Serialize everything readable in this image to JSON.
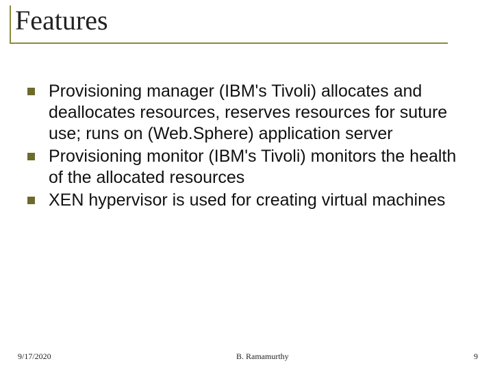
{
  "title": "Features",
  "bullets": [
    "Provisioning manager (IBM's Tivoli) allocates and deallocates resources, reserves resources for suture use; runs on (Web.Sphere) application server",
    "Provisioning monitor (IBM's Tivoli) monitors the health of the allocated resources",
    "XEN hypervisor is used for creating virtual machines"
  ],
  "footer": {
    "date": "9/17/2020",
    "author": "B. Ramamurthy",
    "page": "9"
  },
  "colors": {
    "accent": "#8a8a3a",
    "bullet": "#6b6b2c",
    "text": "#111111",
    "background": "#ffffff"
  },
  "typography": {
    "title_font": "Times New Roman",
    "title_size_pt": 40,
    "body_font": "Arial",
    "body_size_pt": 25,
    "footer_size_pt": 12
  }
}
